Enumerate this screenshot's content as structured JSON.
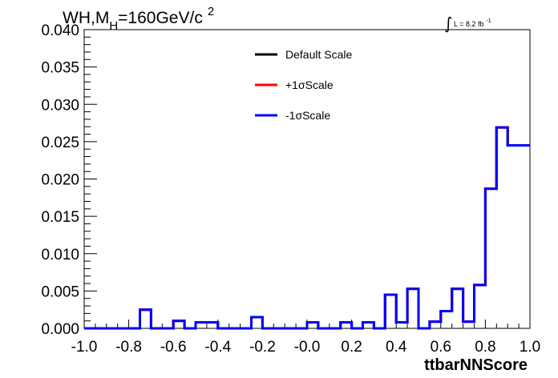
{
  "title": {
    "main": "WH,M",
    "subscript": "H",
    "rest": "=160GeV/c",
    "superscript": "2"
  },
  "luminosity": {
    "integral_symbol": "∫",
    "text": "L = 8.2 fb",
    "exponent": "-1"
  },
  "chart_data": {
    "type": "step",
    "xlabel": "ttbarNNScore",
    "ylabel": "",
    "xlim": [
      -1.0,
      1.0
    ],
    "ylim": [
      0.0,
      0.04
    ],
    "x_tick_labels": [
      "-1.0",
      "-0.8",
      "-0.6",
      "-0.4",
      "-0.2",
      "-0.0",
      "0.2",
      "0.4",
      "0.6",
      "0.8",
      "1.0"
    ],
    "y_tick_labels": [
      "0.000",
      "0.005",
      "0.010",
      "0.015",
      "0.020",
      "0.025",
      "0.030",
      "0.035",
      "0.040"
    ],
    "bin_edges": [
      -1.0,
      -0.95,
      -0.9,
      -0.85,
      -0.8,
      -0.75,
      -0.7,
      -0.65,
      -0.6,
      -0.55,
      -0.5,
      -0.45,
      -0.4,
      -0.35,
      -0.3,
      -0.25,
      -0.2,
      -0.15,
      -0.1,
      -0.05,
      0.0,
      0.05,
      0.1,
      0.15,
      0.2,
      0.25,
      0.3,
      0.35,
      0.4,
      0.45,
      0.5,
      0.55,
      0.6,
      0.65,
      0.7,
      0.75,
      0.8,
      0.85,
      0.9,
      0.95,
      1.0
    ],
    "series": [
      {
        "name": "Default Scale",
        "color": "#000000",
        "values": [
          0,
          0,
          0,
          0,
          0,
          0.0025,
          0,
          0,
          0.001,
          0,
          0.0008,
          0.0008,
          0,
          0,
          0,
          0.0015,
          0,
          0,
          0,
          0,
          0.0008,
          0,
          0,
          0.0008,
          0,
          0.0008,
          0,
          0.0045,
          0.0008,
          0.0053,
          0,
          0.0009,
          0.0023,
          0.0053,
          0.0009,
          0.0058,
          0.0187,
          0.0269,
          0.0245,
          0.0245
        ]
      },
      {
        "name": "+1σScale",
        "color": "#ff0000",
        "values": [
          0,
          0,
          0,
          0,
          0,
          0.0025,
          0,
          0,
          0.001,
          0,
          0.0008,
          0.0008,
          0,
          0,
          0,
          0.0015,
          0,
          0,
          0,
          0,
          0.0008,
          0,
          0,
          0.0008,
          0,
          0.0008,
          0,
          0.0045,
          0.0008,
          0.0053,
          0,
          0.0009,
          0.0023,
          0.0053,
          0.0009,
          0.0058,
          0.0187,
          0.0269,
          0.0245,
          0.0245
        ]
      },
      {
        "name": "-1σScale",
        "color": "#0000ff",
        "values": [
          0,
          0,
          0,
          0,
          0,
          0.0025,
          0,
          0,
          0.001,
          0,
          0.0008,
          0.0008,
          0,
          0,
          0,
          0.0015,
          0,
          0,
          0,
          0,
          0.0008,
          0,
          0,
          0.0008,
          0,
          0.0008,
          0,
          0.0045,
          0.0008,
          0.0053,
          0,
          0.0009,
          0.0023,
          0.0053,
          0.0009,
          0.0058,
          0.0187,
          0.0269,
          0.0245,
          0.0245
        ]
      }
    ],
    "legend_position": "top-center",
    "grid": false
  }
}
